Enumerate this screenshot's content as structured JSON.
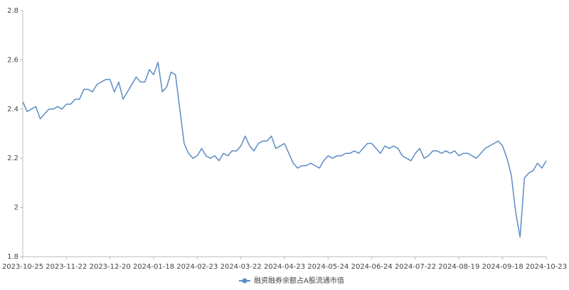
{
  "chart_data": {
    "type": "line",
    "categories": [
      "2023-10-25",
      null,
      null,
      null,
      null,
      null,
      null,
      null,
      null,
      null,
      "2023-11-22",
      null,
      null,
      null,
      null,
      null,
      null,
      null,
      null,
      null,
      "2023-12-20",
      null,
      null,
      null,
      null,
      null,
      null,
      null,
      null,
      null,
      "2024-01-18",
      null,
      null,
      null,
      null,
      null,
      null,
      null,
      null,
      null,
      "2024-02-23",
      null,
      null,
      null,
      null,
      null,
      null,
      null,
      null,
      null,
      "2024-03-22",
      null,
      null,
      null,
      null,
      null,
      null,
      null,
      null,
      null,
      "2024-04-23",
      null,
      null,
      null,
      null,
      null,
      null,
      null,
      null,
      null,
      "2024-05-24",
      null,
      null,
      null,
      null,
      null,
      null,
      null,
      null,
      null,
      "2024-06-24",
      null,
      null,
      null,
      null,
      null,
      null,
      null,
      null,
      null,
      "2024-07-22",
      null,
      null,
      null,
      null,
      null,
      null,
      null,
      null,
      null,
      "2024-08-19",
      null,
      null,
      null,
      null,
      null,
      null,
      null,
      null,
      null,
      "2024-09-18",
      null,
      null,
      null,
      null,
      null,
      null,
      null,
      null,
      null,
      "2024-10-23"
    ],
    "series": [
      {
        "name": "融资融券余额占A股流通市值",
        "color": "#5b8cc4",
        "values": [
          2.43,
          2.39,
          2.4,
          2.41,
          2.36,
          2.38,
          2.4,
          2.4,
          2.41,
          2.4,
          2.42,
          2.42,
          2.44,
          2.44,
          2.48,
          2.48,
          2.47,
          2.5,
          2.51,
          2.52,
          2.52,
          2.47,
          2.51,
          2.44,
          2.47,
          2.5,
          2.53,
          2.51,
          2.51,
          2.56,
          2.54,
          2.59,
          2.47,
          2.49,
          2.55,
          2.54,
          2.4,
          2.26,
          2.22,
          2.2,
          2.21,
          2.24,
          2.21,
          2.2,
          2.21,
          2.19,
          2.22,
          2.21,
          2.23,
          2.23,
          2.25,
          2.29,
          2.25,
          2.23,
          2.26,
          2.27,
          2.27,
          2.29,
          2.24,
          2.25,
          2.26,
          2.22,
          2.18,
          2.16,
          2.17,
          2.17,
          2.18,
          2.17,
          2.16,
          2.19,
          2.21,
          2.2,
          2.21,
          2.21,
          2.22,
          2.22,
          2.23,
          2.22,
          2.24,
          2.26,
          2.26,
          2.24,
          2.22,
          2.25,
          2.24,
          2.25,
          2.24,
          2.21,
          2.2,
          2.19,
          2.22,
          2.24,
          2.2,
          2.21,
          2.23,
          2.23,
          2.22,
          2.23,
          2.22,
          2.23,
          2.21,
          2.22,
          2.22,
          2.21,
          2.2,
          2.22,
          2.24,
          2.25,
          2.26,
          2.27,
          2.25,
          2.2,
          2.13,
          1.98,
          1.88,
          2.12,
          2.14,
          2.15,
          2.18,
          2.16,
          2.19
        ]
      }
    ],
    "ylim": [
      1.8,
      2.8
    ],
    "yticks": [
      1.8,
      2,
      2.2,
      2.4,
      2.6,
      2.8
    ],
    "grid": false,
    "legend": "bottom"
  }
}
